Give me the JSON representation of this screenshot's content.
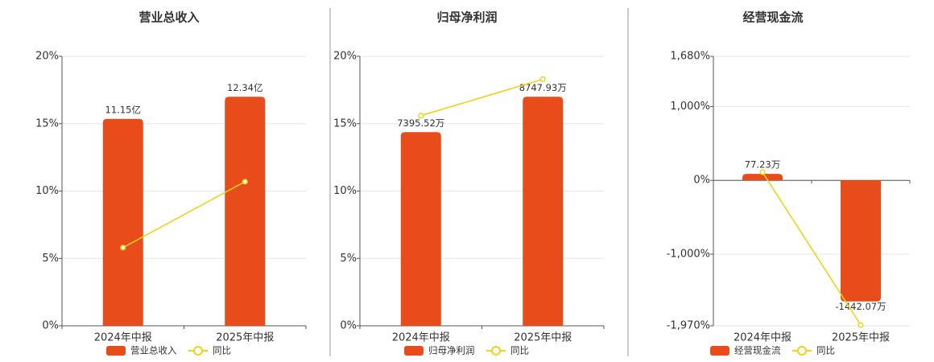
{
  "chart_data": [
    {
      "type": "bar",
      "title": "营业总收入",
      "categories": [
        "2024年中报",
        "2025年中报"
      ],
      "series": [
        {
          "name": "营业总收入",
          "color": "#e84c1a",
          "axis": "y2",
          "values": [
            11.15,
            12.34
          ],
          "value_labels": [
            "11.15亿",
            "12.34亿"
          ]
        },
        {
          "name": "同比",
          "color": "#f2d21a",
          "type": "line",
          "values": [
            5.8,
            10.7
          ]
        }
      ],
      "ylim": [
        0,
        20
      ],
      "yticks": [
        {
          "value": 0,
          "label": "0%"
        },
        {
          "value": 5,
          "label": "5%"
        },
        {
          "value": 10,
          "label": "10%"
        },
        {
          "value": 15,
          "label": "15%"
        },
        {
          "value": 20,
          "label": "20%"
        }
      ],
      "y2lim": [
        0,
        14.52
      ],
      "grid": true
    },
    {
      "type": "bar",
      "title": "归母净利润",
      "categories": [
        "2024年中报",
        "2025年中报"
      ],
      "series": [
        {
          "name": "归母净利润",
          "color": "#e84c1a",
          "axis": "y2",
          "values": [
            7395.52,
            8747.93
          ],
          "value_labels": [
            "7395.52万",
            "8747.93万"
          ]
        },
        {
          "name": "同比",
          "color": "#f2d21a",
          "type": "line",
          "values": [
            15.6,
            18.3
          ]
        }
      ],
      "ylim": [
        0,
        20
      ],
      "yticks": [
        {
          "value": 0,
          "label": "0%"
        },
        {
          "value": 5,
          "label": "5%"
        },
        {
          "value": 10,
          "label": "10%"
        },
        {
          "value": 15,
          "label": "15%"
        },
        {
          "value": 20,
          "label": "20%"
        }
      ],
      "y2lim": [
        0,
        10292
      ],
      "grid": true
    },
    {
      "type": "bar",
      "title": "经营现金流",
      "categories": [
        "2024年中报",
        "2025年中报"
      ],
      "series": [
        {
          "name": "经营现金流",
          "color": "#e84c1a",
          "axis": "y2",
          "values": [
            77.23,
            -1442.07
          ],
          "value_labels": [
            "77.23万",
            "-1442.07万"
          ]
        },
        {
          "name": "同比",
          "color": "#f2d21a",
          "type": "line",
          "values": [
            110,
            -1960
          ]
        }
      ],
      "ylim": [
        -1970,
        1680
      ],
      "yticks": [
        {
          "value": -1970,
          "label": "-1,970%"
        },
        {
          "value": -1000,
          "label": "-1,000%"
        },
        {
          "value": 0,
          "label": "0%"
        },
        {
          "value": 1000,
          "label": "1,000%"
        },
        {
          "value": 1680,
          "label": "1,680%"
        }
      ],
      "y2lim": [
        -1732,
        1477
      ],
      "grid": true
    }
  ]
}
